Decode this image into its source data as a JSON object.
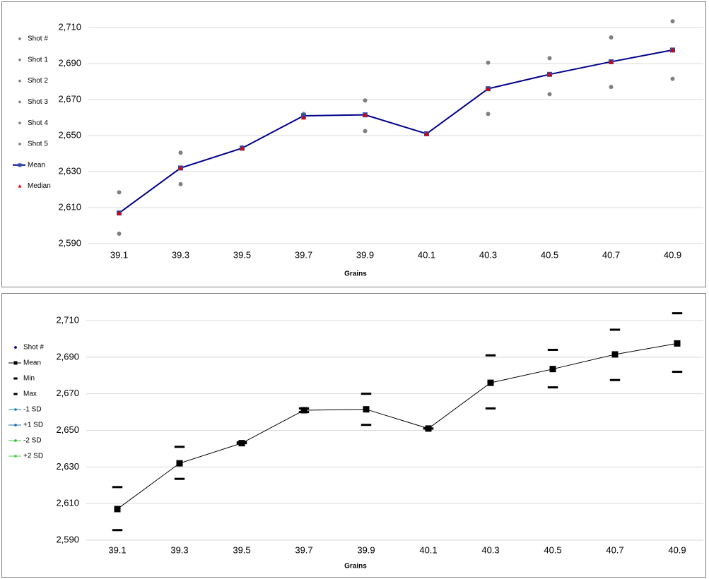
{
  "chart_data": [
    {
      "type": "line",
      "x_label": "Grains",
      "categories": [
        "39.1",
        "39.3",
        "39.5",
        "39.7",
        "39.9",
        "40.1",
        "40.3",
        "40.5",
        "40.7",
        "40.9"
      ],
      "ylim": [
        2590,
        2710
      ],
      "yticks": [
        {
          "value": 2590,
          "label": "2,590"
        },
        {
          "value": 2610,
          "label": "2,610"
        },
        {
          "value": 2630,
          "label": "2,630"
        },
        {
          "value": 2650,
          "label": "2,650"
        },
        {
          "value": 2670,
          "label": "2,670"
        },
        {
          "value": 2690,
          "label": "2,690"
        },
        {
          "value": 2710,
          "label": "2,710"
        }
      ],
      "grid": true,
      "series": [
        {
          "name": "Shot #",
          "color": "#808080",
          "marker": "circle",
          "line": false,
          "values": [
            null,
            null,
            null,
            null,
            null,
            null,
            null,
            null,
            null,
            null
          ]
        },
        {
          "name": "Shot 1",
          "color": "#808080",
          "marker": "circle",
          "line": false,
          "values": [
            2618.5,
            2640.5,
            2643.5,
            2662,
            2669.5,
            2651,
            2690.5,
            2693,
            2704.5,
            2713.5
          ]
        },
        {
          "name": "Shot 2",
          "color": "#808080",
          "marker": "circle",
          "line": false,
          "values": [
            2595.5,
            2623,
            2643,
            2660,
            2652.5,
            2651,
            2662,
            2673,
            2677,
            2681.5
          ]
        },
        {
          "name": "Shot 3",
          "color": "#808080",
          "marker": "circle",
          "line": false,
          "values": [
            null,
            null,
            null,
            null,
            null,
            null,
            null,
            null,
            null,
            null
          ]
        },
        {
          "name": "Shot 4",
          "color": "#808080",
          "marker": "circle",
          "line": false,
          "values": [
            null,
            null,
            null,
            null,
            null,
            null,
            null,
            null,
            null,
            null
          ]
        },
        {
          "name": "Shot 5",
          "color": "#808080",
          "marker": "circle",
          "line": false,
          "values": [
            null,
            null,
            null,
            null,
            null,
            null,
            null,
            null,
            null,
            null
          ]
        },
        {
          "name": "Mean",
          "color": "#00008b",
          "marker": "square",
          "line": true,
          "values": [
            2607,
            2632,
            2643,
            2661,
            2661.5,
            2651,
            2676,
            2684,
            2691,
            2697.5
          ]
        },
        {
          "name": "Median",
          "color": "#e00000",
          "marker": "triangle",
          "line": false,
          "values": [
            2607,
            2632,
            2643,
            2660,
            2661.5,
            2651,
            2676,
            2684,
            2691,
            2697.5
          ]
        }
      ]
    },
    {
      "type": "line",
      "x_label": "Grains",
      "categories": [
        "39.1",
        "39.3",
        "39.5",
        "39.7",
        "39.9",
        "40.1",
        "40.3",
        "40.5",
        "40.7",
        "40.9"
      ],
      "ylim": [
        2590,
        2710
      ],
      "yticks": [
        {
          "value": 2590,
          "label": "2,590"
        },
        {
          "value": 2610,
          "label": "2,610"
        },
        {
          "value": 2630,
          "label": "2,630"
        },
        {
          "value": 2650,
          "label": "2,650"
        },
        {
          "value": 2670,
          "label": "2,670"
        },
        {
          "value": 2690,
          "label": "2,690"
        },
        {
          "value": 2710,
          "label": "2,710"
        }
      ],
      "grid": true,
      "series": [
        {
          "name": "Shot #",
          "color": "#00008b",
          "marker": "circle",
          "line": false,
          "values": [
            null,
            null,
            null,
            null,
            null,
            null,
            null,
            null,
            null,
            null
          ]
        },
        {
          "name": "Mean",
          "color": "#000000",
          "marker": "square",
          "line": true,
          "values": [
            2607,
            2632,
            2643,
            2661,
            2661.5,
            2651,
            2676,
            2683.5,
            2691.5,
            2697.5
          ]
        },
        {
          "name": "Min",
          "color": "#000000",
          "marker": "dash",
          "line": false,
          "values": [
            2595.5,
            2623.5,
            2643,
            2660,
            2653,
            2651,
            2662,
            2673.5,
            2677.5,
            2682
          ]
        },
        {
          "name": "Max",
          "color": "#000000",
          "marker": "dash",
          "line": false,
          "values": [
            2619,
            2641,
            2643.5,
            2662,
            2670,
            2651,
            2691,
            2694,
            2705,
            2714
          ]
        },
        {
          "name": "-1 SD",
          "color": "#1f8fc0",
          "marker": "circle",
          "line": true,
          "values": [
            null,
            null,
            null,
            null,
            null,
            null,
            null,
            null,
            null,
            null
          ]
        },
        {
          "name": "+1 SD",
          "color": "#1f6fb0",
          "marker": "circle",
          "line": true,
          "values": [
            null,
            null,
            null,
            null,
            null,
            null,
            null,
            null,
            null,
            null
          ]
        },
        {
          "name": "-2 SD",
          "color": "#3cc03c",
          "marker": "circle",
          "line": true,
          "values": [
            null,
            null,
            null,
            null,
            null,
            null,
            null,
            null,
            null,
            null
          ]
        },
        {
          "name": "+2 SD",
          "color": "#4cd04c",
          "marker": "circle",
          "line": true,
          "values": [
            null,
            null,
            null,
            null,
            null,
            null,
            null,
            null,
            null,
            null
          ]
        }
      ]
    }
  ]
}
